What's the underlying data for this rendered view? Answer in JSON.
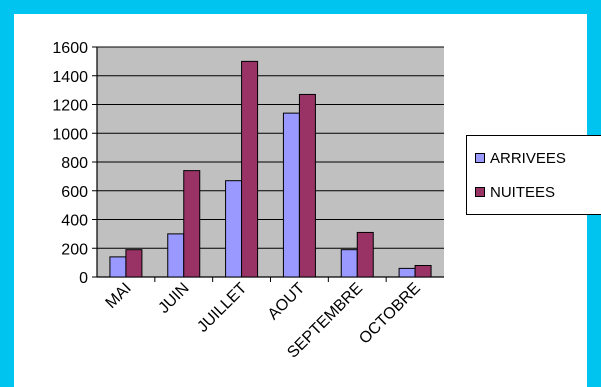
{
  "chart_data": {
    "type": "bar",
    "categories": [
      "MAI",
      "JUIN",
      "JUILLET",
      "AOUT",
      "SEPTEMBRE",
      "OCTOBRE"
    ],
    "series": [
      {
        "name": "ARRIVEES",
        "color": "#9999ff",
        "values": [
          140,
          300,
          670,
          1140,
          190,
          60
        ]
      },
      {
        "name": "NUITEES",
        "color": "#993366",
        "values": [
          190,
          740,
          1500,
          1270,
          310,
          80
        ]
      }
    ],
    "ylim": [
      0,
      1600
    ],
    "yticks": [
      0,
      200,
      400,
      600,
      800,
      1000,
      1200,
      1400,
      1600
    ],
    "grid": true,
    "plot_background": "#c0c0c0",
    "legend_position": "right"
  },
  "frame_color": "#00c4f0"
}
